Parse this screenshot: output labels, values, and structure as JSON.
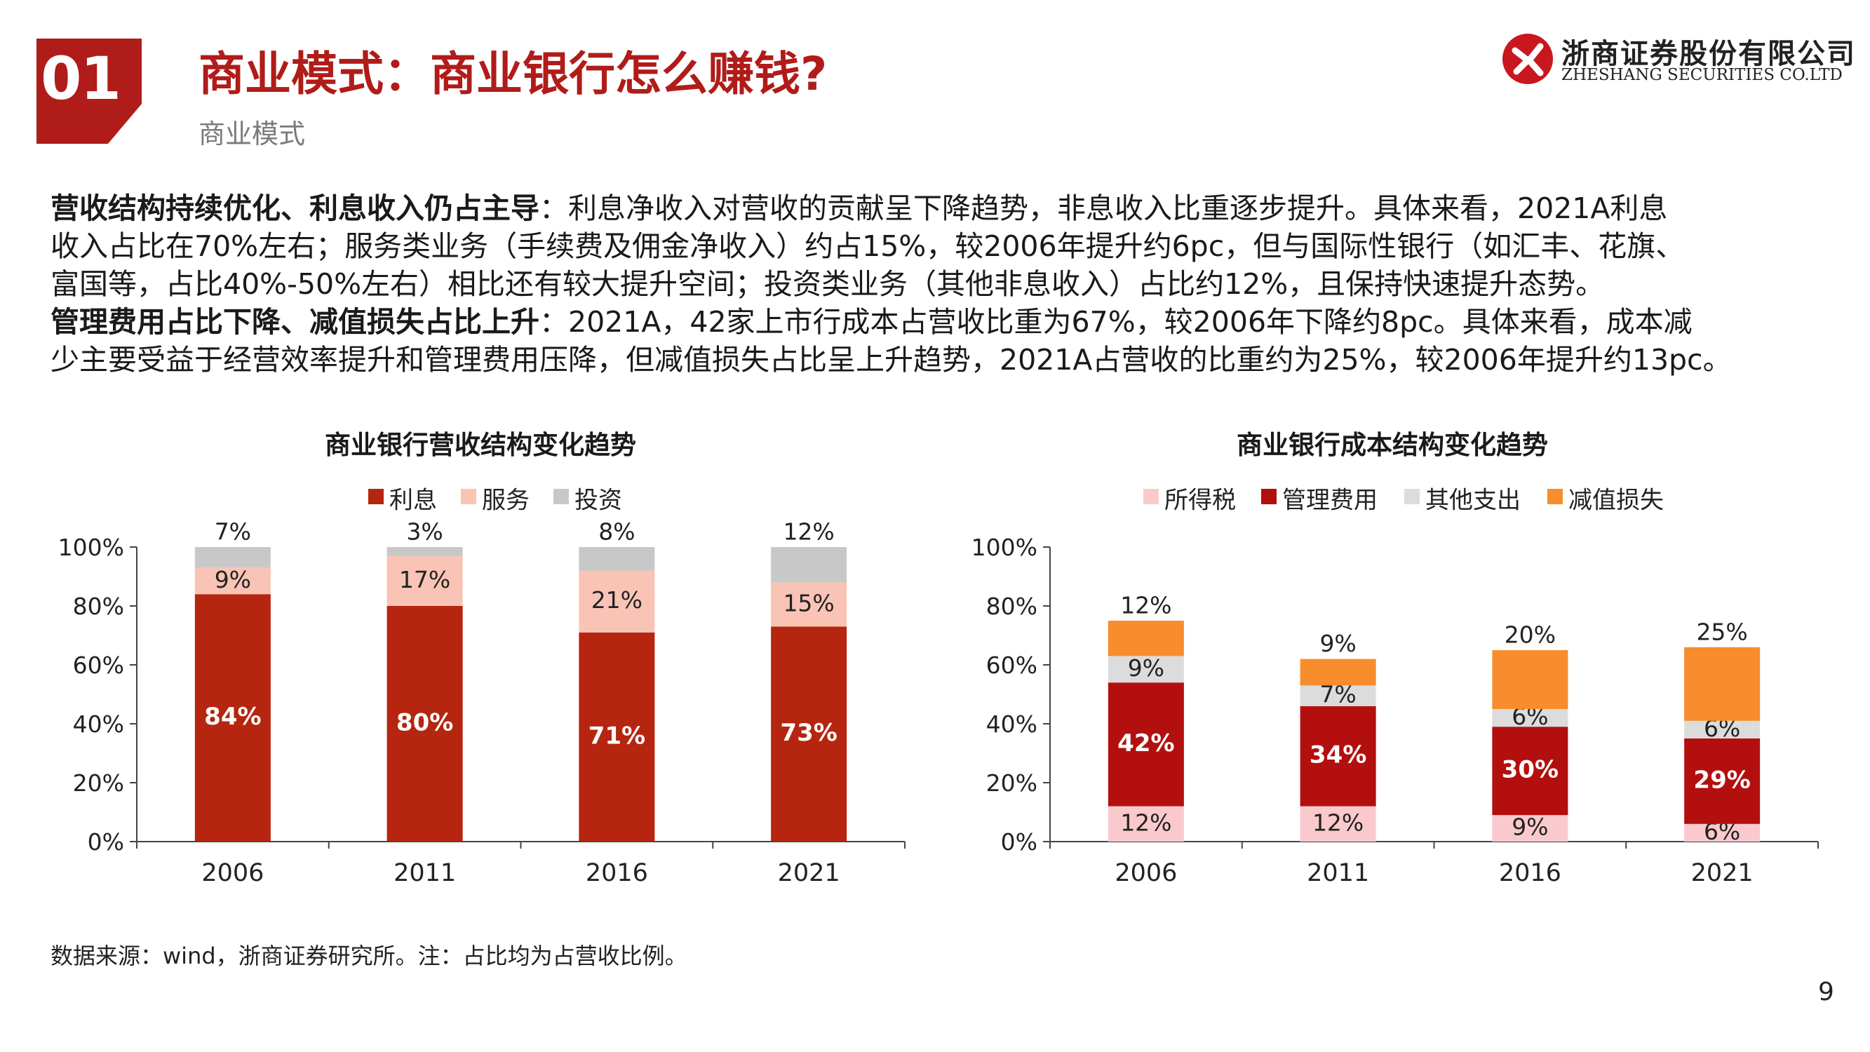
{
  "header": {
    "section_number": "01",
    "title": "商业模式：商业银行怎么赚钱?",
    "subtitle": "商业模式"
  },
  "logo": {
    "name_cn": "浙商证券股份有限公司",
    "name_en": "ZHESHANG SECURITIES CO.LTD",
    "icon": "zheshang-logo-icon"
  },
  "paragraph1": {
    "lead": "营收结构持续优化、利息收入仍占主导",
    "line1": "：利息净收入对营收的贡献呈下降趋势，非息收入比重逐步提升。具体来看，2021A利息",
    "line2": "收入占比在70%左右；服务类业务（手续费及佣金净收入）约占15%，较2006年提升约6pc，但与国际性银行（如汇丰、花旗、",
    "line3": "富国等，占比40%-50%左右）相比还有较大提升空间；投资类业务（其他非息收入）占比约12%，且保持快速提升态势。"
  },
  "paragraph2": {
    "lead": "管理费用占比下降、减值损失占比上升",
    "line1": "：2021A，42家上市行成本占营收比重为67%，较2006年下降约8pc。具体来看，成本减",
    "line2": "少主要受益于经营效率提升和管理费用压降，但减值损失占比呈上升趋势，2021A占营收的比重约为25%，较2006年提升约13pc。"
  },
  "chart_data": [
    {
      "type": "bar",
      "stacked": true,
      "title": "商业银行营收结构变化趋势",
      "categories": [
        "2006",
        "2011",
        "2016",
        "2021"
      ],
      "series": [
        {
          "name": "利息",
          "color": "#b5250f",
          "values": [
            84,
            80,
            71,
            73
          ],
          "labels": [
            "84%",
            "80%",
            "71%",
            "73%"
          ]
        },
        {
          "name": "服务",
          "color": "#f9c4b5",
          "values": [
            9,
            17,
            21,
            15
          ],
          "labels": [
            "9%",
            "17%",
            "21%",
            "15%"
          ]
        },
        {
          "name": "投资",
          "color": "#c8c8c8",
          "values": [
            7,
            3,
            8,
            12
          ],
          "labels": [
            "7%",
            "3%",
            "8%",
            "12%"
          ]
        }
      ],
      "ylim": [
        0,
        100
      ],
      "yticks": [
        "0%",
        "20%",
        "40%",
        "60%",
        "80%",
        "100%"
      ],
      "legend": "top",
      "grid": false
    },
    {
      "type": "bar",
      "stacked": true,
      "title": "商业银行成本结构变化趋势",
      "categories": [
        "2006",
        "2011",
        "2016",
        "2021"
      ],
      "series": [
        {
          "name": "所得税",
          "color": "#f9c9cd",
          "values": [
            12,
            12,
            9,
            6
          ],
          "labels": [
            "12%",
            "12%",
            "9%",
            "6%"
          ]
        },
        {
          "name": "管理费用",
          "color": "#b30f0f",
          "values": [
            42,
            34,
            30,
            29
          ],
          "labels": [
            "42%",
            "34%",
            "30%",
            "29%"
          ]
        },
        {
          "name": "其他支出",
          "color": "#dcdcdc",
          "values": [
            9,
            7,
            6,
            6
          ],
          "labels": [
            "9%",
            "7%",
            "6%",
            "6%"
          ]
        },
        {
          "name": "减值损失",
          "color": "#f78d2c",
          "values": [
            12,
            9,
            20,
            25
          ],
          "labels": [
            "12%",
            "9%",
            "20%",
            "25%"
          ]
        }
      ],
      "ylim": [
        0,
        100
      ],
      "yticks": [
        "0%",
        "20%",
        "40%",
        "60%",
        "80%",
        "100%"
      ],
      "legend": "top",
      "grid": false
    }
  ],
  "footer": {
    "source": "数据来源：wind，浙商证券研究所。注：占比均为占营收比例。",
    "page_number": "9"
  }
}
